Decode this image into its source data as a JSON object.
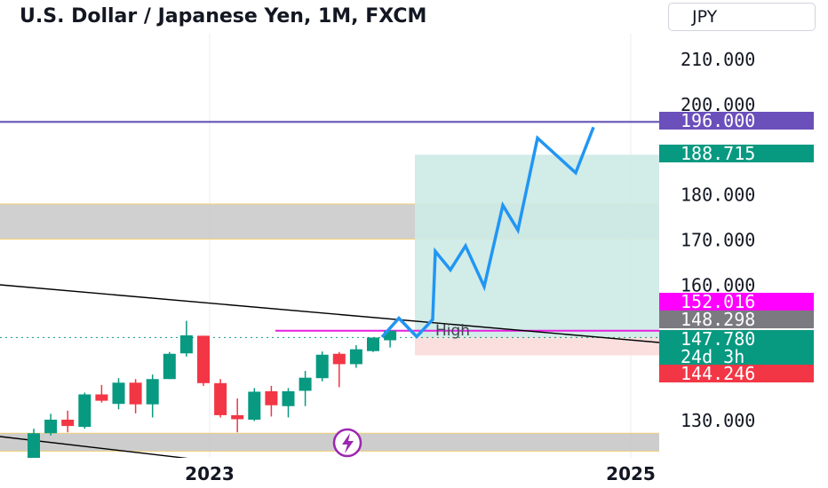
{
  "title": "U.S. Dollar / Japanese Yen, 1M, FXCM",
  "currency_label": "JPY",
  "colors": {
    "up": "#089981",
    "down": "#f23645",
    "purple_line": "#5b4bb0",
    "magenta_line": "#e81ee0",
    "projection": "#2196f3",
    "target_zone": "#cdeae5",
    "stop_zone": "#fbdcdc",
    "supply_zone": "#c8c8c8",
    "lightning": "#9c27b0"
  },
  "chart_data": {
    "type": "candlestick",
    "symbol": "USD/JPY",
    "timeframe": "1M",
    "ylim": [
      126,
      215
    ],
    "y_ticks": [
      "210.000",
      "200.000",
      "180.000",
      "170.000",
      "160.000",
      "130.000"
    ],
    "x_ticks": [
      "2023",
      "2025"
    ],
    "candles": [
      {
        "o": 115.0,
        "h": 128.0,
        "l": 115.0,
        "c": 127.0
      },
      {
        "o": 127.0,
        "h": 131.3,
        "l": 126.5,
        "c": 130.0
      },
      {
        "o": 130.0,
        "h": 132.0,
        "l": 127.2,
        "c": 128.6
      },
      {
        "o": 128.4,
        "h": 136.0,
        "l": 128.0,
        "c": 135.6
      },
      {
        "o": 135.6,
        "h": 137.7,
        "l": 133.8,
        "c": 134.2
      },
      {
        "o": 133.5,
        "h": 139.2,
        "l": 132.3,
        "c": 138.2
      },
      {
        "o": 138.2,
        "h": 139.0,
        "l": 131.4,
        "c": 133.4
      },
      {
        "o": 133.4,
        "h": 140.0,
        "l": 130.5,
        "c": 139.0
      },
      {
        "o": 139.0,
        "h": 145.0,
        "l": 139.0,
        "c": 144.6
      },
      {
        "o": 144.7,
        "h": 151.9,
        "l": 144.0,
        "c": 148.7
      },
      {
        "o": 148.6,
        "h": 148.6,
        "l": 137.5,
        "c": 138.1
      },
      {
        "o": 138.1,
        "h": 139.0,
        "l": 130.5,
        "c": 131.0
      },
      {
        "o": 131.0,
        "h": 134.7,
        "l": 127.2,
        "c": 130.1
      },
      {
        "o": 130.0,
        "h": 137.0,
        "l": 129.7,
        "c": 136.2
      },
      {
        "o": 136.3,
        "h": 137.5,
        "l": 130.7,
        "c": 133.2
      },
      {
        "o": 133.0,
        "h": 137.0,
        "l": 130.5,
        "c": 136.3
      },
      {
        "o": 136.4,
        "h": 140.8,
        "l": 133.0,
        "c": 139.3
      },
      {
        "o": 139.2,
        "h": 145.1,
        "l": 138.5,
        "c": 144.4
      },
      {
        "o": 144.6,
        "h": 145.0,
        "l": 137.2,
        "c": 142.3
      },
      {
        "o": 142.3,
        "h": 146.5,
        "l": 141.5,
        "c": 145.6
      },
      {
        "o": 145.2,
        "h": 147.8,
        "l": 145.0,
        "c": 148.2
      },
      {
        "o": 147.6,
        "h": 149.7,
        "l": 146.0,
        "c": 149.7
      }
    ],
    "levels": [
      {
        "label": "196.000",
        "value": 196.0
      },
      {
        "label": "188.715",
        "value": 188.715
      },
      {
        "label": "152.016",
        "value": 152.016
      },
      {
        "label": "148.298",
        "value": 148.298
      },
      {
        "label": "147.780",
        "sublabel": "24d 3h",
        "value": 147.78
      },
      {
        "label": "144.246",
        "value": 144.246
      }
    ],
    "zones": [
      {
        "name": "supply-zone",
        "low": 170.0,
        "high": 177.8
      },
      {
        "name": "demand-zone",
        "low": 123.0,
        "high": 127.0
      },
      {
        "name": "target-zone",
        "low": 148.298,
        "high": 188.715
      },
      {
        "name": "stop-zone",
        "low": 144.246,
        "high": 148.298
      }
    ],
    "projection_path": [
      148.3,
      152.5,
      148.4,
      152.2,
      167.3,
      163.2,
      168.5,
      159.5,
      177.5,
      172.0,
      192.4,
      184.7,
      194.8
    ],
    "annotations": [
      "High"
    ]
  }
}
